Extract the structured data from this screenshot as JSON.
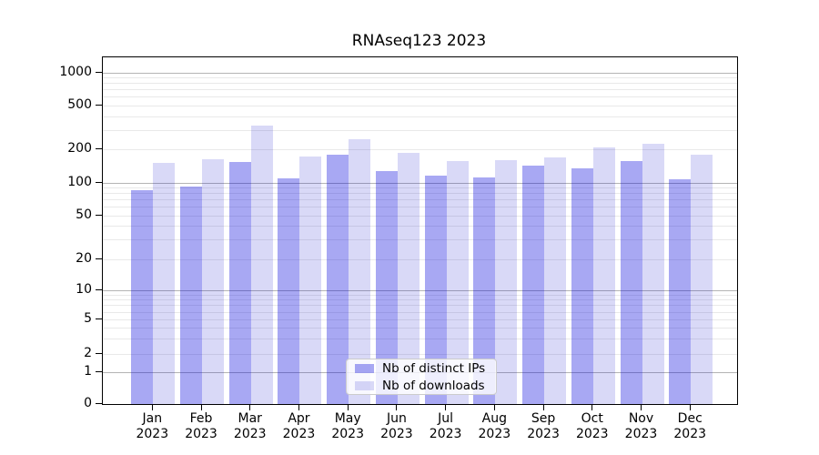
{
  "title": "RNAseq123 2023",
  "chart_data": {
    "type": "bar",
    "title": "RNAseq123 2023",
    "categories": [
      "Jan 2023",
      "Feb 2023",
      "Mar 2023",
      "Apr 2023",
      "May 2023",
      "Jun 2023",
      "Jul 2023",
      "Aug 2023",
      "Sep 2023",
      "Oct 2023",
      "Nov 2023",
      "Dec 2023"
    ],
    "series": [
      {
        "name": "Nb of distinct IPs",
        "color": "#a8a8f3",
        "css_color": "rgba(0,0,220,0.34)",
        "values": [
          85,
          91,
          153,
          108,
          177,
          127,
          115,
          111,
          141,
          133,
          155,
          106
        ]
      },
      {
        "name": "Nb of downloads",
        "color": "#dadaf7",
        "css_color": "rgba(0,0,200,0.15)",
        "values": [
          150,
          162,
          327,
          171,
          245,
          186,
          157,
          160,
          170,
          206,
          226,
          177
        ]
      }
    ],
    "xlabel": "",
    "ylabel": "",
    "yscale": "symlog",
    "yticks": [
      0,
      1,
      2,
      5,
      10,
      20,
      50,
      100,
      200,
      500,
      1000
    ],
    "ylim": [
      0,
      1400
    ],
    "grid": true,
    "legend_position": "lower center",
    "grid_major_color": "#b4b4b4",
    "grid_minor_color": "#e9e9e9"
  },
  "legend": {
    "items": [
      {
        "label": "Nb of distinct IPs",
        "color": "rgba(0,0,220,0.34)"
      },
      {
        "label": "Nb of downloads",
        "color": "rgba(0,0,200,0.15)"
      }
    ]
  }
}
